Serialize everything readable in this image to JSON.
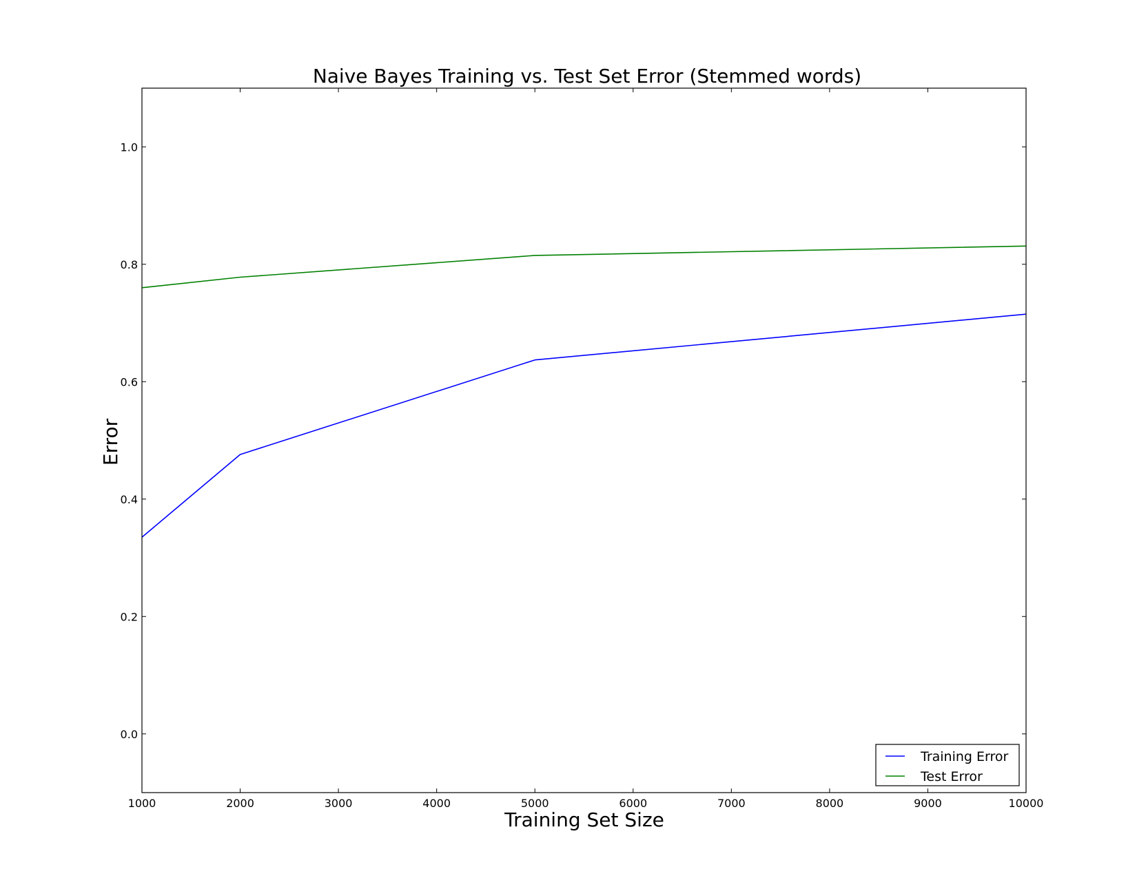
{
  "chart_data": {
    "type": "line",
    "title": "Naive Bayes Training vs. Test Set Error (Stemmed words)",
    "xlabel": "Training Set Size",
    "ylabel": "Error",
    "xlim": [
      1000,
      10000
    ],
    "ylim": [
      -0.1,
      1.1
    ],
    "xticks": [
      1000,
      2000,
      3000,
      4000,
      5000,
      6000,
      7000,
      8000,
      9000,
      10000
    ],
    "xtick_labels": [
      "1000",
      "2000",
      "3000",
      "4000",
      "5000",
      "6000",
      "7000",
      "8000",
      "9000",
      "10000"
    ],
    "yticks": [
      0.0,
      0.2,
      0.4,
      0.6,
      0.8,
      1.0
    ],
    "ytick_labels": [
      "0.0",
      "0.2",
      "0.4",
      "0.6",
      "0.8",
      "1.0"
    ],
    "grid": false,
    "legend_position": "bottom-right",
    "x": [
      1000,
      2000,
      5000,
      10000
    ],
    "series": [
      {
        "name": "Training Error",
        "color": "#0000ff",
        "values": [
          0.335,
          0.476,
          0.637,
          0.715
        ]
      },
      {
        "name": "Test Error",
        "color": "#008000",
        "values": [
          0.76,
          0.778,
          0.815,
          0.831
        ]
      }
    ]
  }
}
